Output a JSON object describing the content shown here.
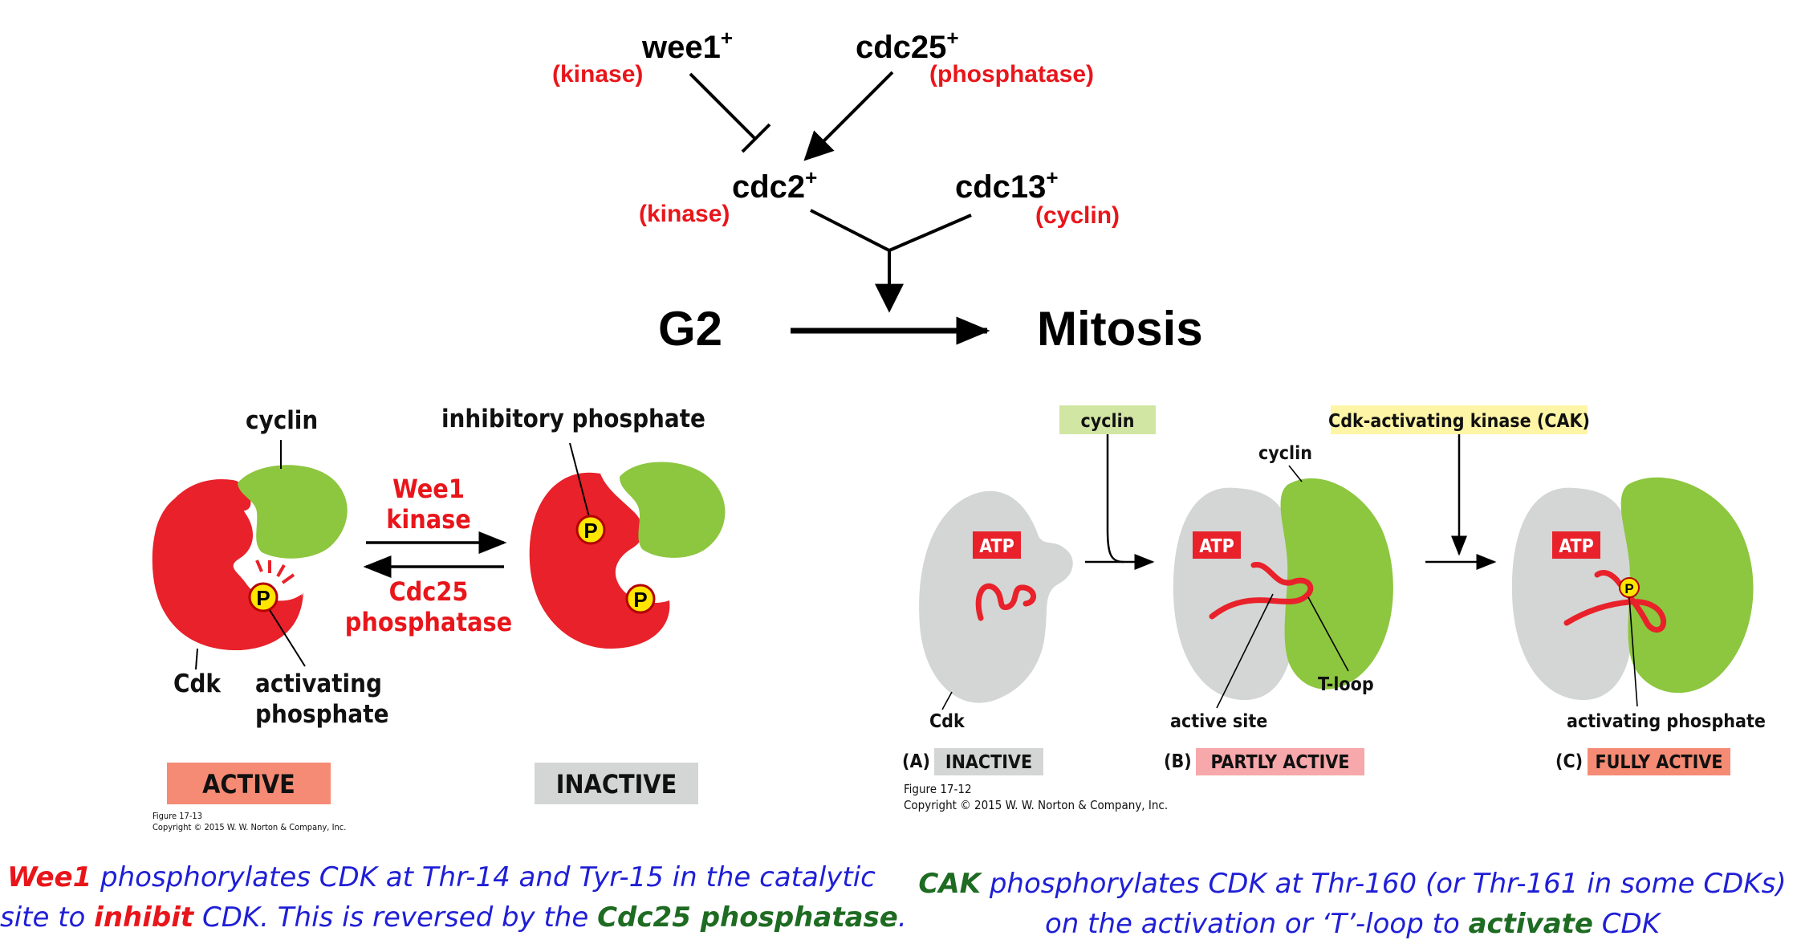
{
  "pathway": {
    "wee1": {
      "name": "wee1",
      "sup": "+",
      "role": "(kinase)"
    },
    "cdc25": {
      "name": "cdc25",
      "sup": "+",
      "role": "(phosphatase)"
    },
    "cdc2": {
      "name": "cdc2",
      "sup": "+",
      "role": "(kinase)"
    },
    "cdc13": {
      "name": "cdc13",
      "sup": "+",
      "role": "(cyclin)"
    },
    "g2": "G2",
    "mitosis": "Mitosis"
  },
  "fig13": {
    "cyclin_label": "cyclin",
    "inhibitory_label": "inhibitory phosphate",
    "wee1_line1": "Wee1",
    "wee1_line2": "kinase",
    "cdc25_line1": "Cdc25",
    "cdc25_line2": "phosphatase",
    "cdk_label": "Cdk",
    "activating_line1": "activating",
    "activating_line2": "phosphate",
    "phospho_symbol": "P",
    "active_label": "ACTIVE",
    "inactive_label": "INACTIVE",
    "figure_no": "Figure 17-13",
    "copyright": "Copyright © 2015 W. W. Norton & Company, Inc."
  },
  "fig12": {
    "cyclin_box": "cyclin",
    "cak_box": "Cdk-activating kinase (CAK)",
    "cyclin_label": "cyclin",
    "atp": "ATP",
    "cdk_label": "Cdk",
    "active_site": "active site",
    "t_loop": "T-loop",
    "activating_phosphate": "activating phosphate",
    "phospho_symbol": "P",
    "panel_a": "(A)",
    "state_a": "INACTIVE",
    "panel_b": "(B)",
    "state_b": "PARTLY ACTIVE",
    "panel_c": "(C)",
    "state_c": "FULLY ACTIVE",
    "figure_no": "Figure 17-12",
    "copyright": "Copyright © 2015 W. W. Norton & Company, Inc."
  },
  "captions": {
    "left": {
      "l1_a": "Wee1",
      "l1_b": " phosphorylates CDK at Thr-14 and Tyr-15 in the catalytic",
      "l2_a": "site to ",
      "l2_b": "inhibit",
      "l2_c": " CDK. This is reversed by the ",
      "l2_d": "Cdc25 phosphatase",
      "l2_e": "."
    },
    "right": {
      "l1_a": "CAK",
      "l1_b": " phosphorylates CDK at Thr-160 (or Thr-161 in some CDKs)",
      "l2_a": "on the activation or ‘T’-loop to ",
      "l2_b": "activate",
      "l2_c": " CDK"
    }
  },
  "colors": {
    "cdk_red": "#e8212a",
    "cyclin_green": "#8dc63f",
    "inactive_gray": "#d3d6d4",
    "phosphate_yellow": "#ffe600",
    "label_red": "#e8161b",
    "caption_blue": "#1f1fd6",
    "caption_green": "#1e6b22",
    "active_badge": "#f58b74",
    "partly_badge": "#f7a8aa",
    "cyclin_box": "#d2e6a3",
    "cak_box": "#fff5a6"
  }
}
